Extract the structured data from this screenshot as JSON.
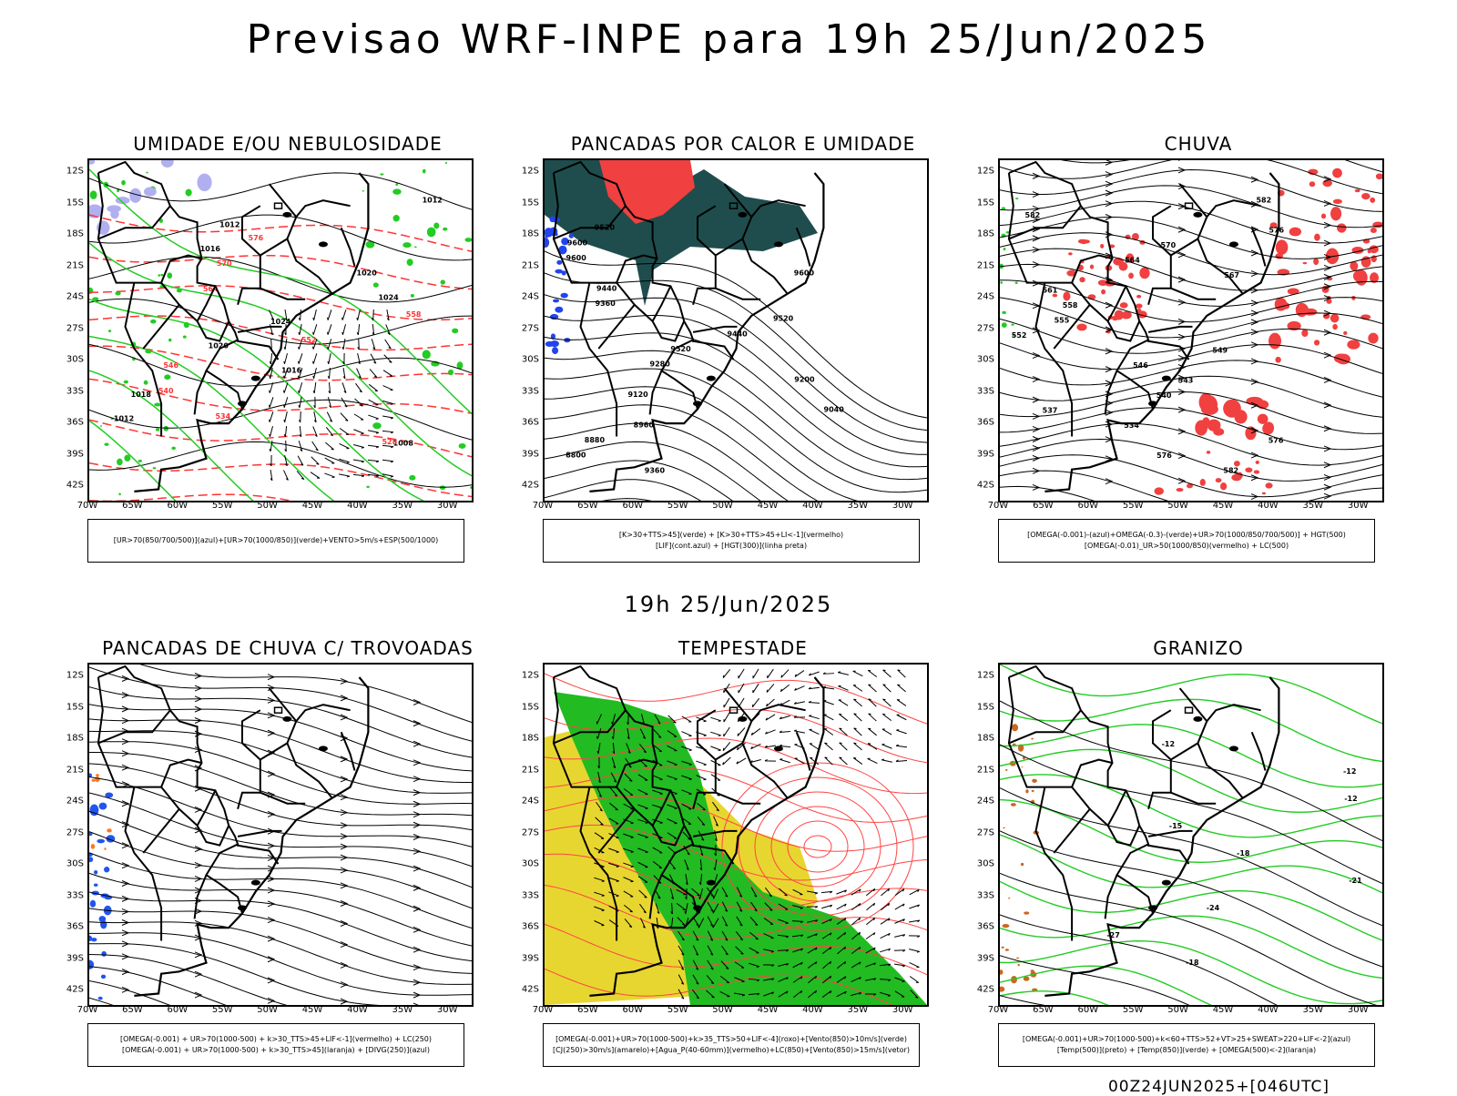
{
  "title": "Previsao WRF-INPE  para 19h 25/Jun/2025",
  "mid_title": "19h 25/Jun/2025",
  "footer": "00Z24JUN2025+[046UTC]",
  "axes": {
    "lat_labels": [
      "12S",
      "15S",
      "18S",
      "21S",
      "24S",
      "27S",
      "30S",
      "33S",
      "36S",
      "39S",
      "42S"
    ],
    "lon_labels": [
      "70W",
      "65W",
      "60W",
      "55W",
      "50W",
      "45W",
      "40W",
      "35W",
      "30W"
    ]
  },
  "panels": [
    {
      "title": "UMIDADE E/OU NEBULOSIDADE",
      "legend_lines": [
        "[UR>70(850/700/500)](azul)+[UR>70(1000/850)](verde)+VENTO>5m/s+ESP(500/1000)"
      ]
    },
    {
      "title": "PANCADAS POR CALOR E UMIDADE",
      "legend_lines": [
        "[K>30+TTS>45](verde) + [K>30+TTS>45+LI<-1](vermelho)",
        "[LIF](cont.azul) + [HGT(300)](linha preta)"
      ]
    },
    {
      "title": "CHUVA",
      "legend_lines": [
        "[OMEGA(-0.001)-(azul)+OMEGA(-0.3)-(verde)+UR>70(1000/850/700/500)] + HGT(500)",
        "[OMEGA(-0.01)_UR>50(1000/850)(vermelho) + LC(500)"
      ]
    },
    {
      "title": "PANCADAS DE CHUVA C/ TROVOADAS",
      "legend_lines": [
        "[OMEGA(-0.001) + UR>70(1000-500) + k>30_TTS>45+LIF<-1](vermelho) + LC(250)",
        "[OMEGA(-0.001) + UR>70(1000-500) + k>30_TTS>45](laranja) + [DIVG(250)](azul)"
      ]
    },
    {
      "title": "TEMPESTADE",
      "legend_lines": [
        "[OMEGA(-0.001)+UR>70(1000-500)+k>35_TTS>50+LIF<-4](roxo)+[Vento(850)>10m/s](verde)",
        "[CJ(250)>30m/s](amarelo)+[Agua_P(40-60mm)](vermelho)+LC(850)+[Vento(850)>15m/s](vetor)"
      ]
    },
    {
      "title": "GRANIZO",
      "legend_lines": [
        "[OMEGA(-0.001)+UR>70(1000-500)+k<60+TTS>52+VT>25+SWEAT>220+LIF<-2](azul)",
        "[Temp(500)](preto) + [Temp(850)](verde) + [OMEGA(500)<-2](laranja)"
      ]
    }
  ],
  "contour_labels": {
    "p1": [
      "1012",
      "1012",
      "1016",
      "1020",
      "1024",
      "1024",
      "1020",
      "1016",
      "1018",
      "1012",
      "1008",
      "576",
      "570",
      "564",
      "558",
      "552",
      "546",
      "540",
      "534",
      "528"
    ],
    "p2": [
      "9520",
      "9600",
      "9600",
      "9600",
      "9440",
      "9360",
      "9520",
      "9440",
      "9520",
      "9280",
      "9200",
      "9120",
      "9040",
      "8960",
      "8880",
      "8800",
      "9360"
    ],
    "p3": [
      "582",
      "582",
      "576",
      "570",
      "564",
      "567",
      "561",
      "558",
      "555",
      "552",
      "549",
      "546",
      "543",
      "540",
      "537",
      "534",
      "576",
      "576",
      "582"
    ],
    "p6": [
      "-12",
      "-12",
      "-12",
      "-15",
      "-18",
      "-21",
      "-24",
      "-27",
      "-18"
    ]
  }
}
